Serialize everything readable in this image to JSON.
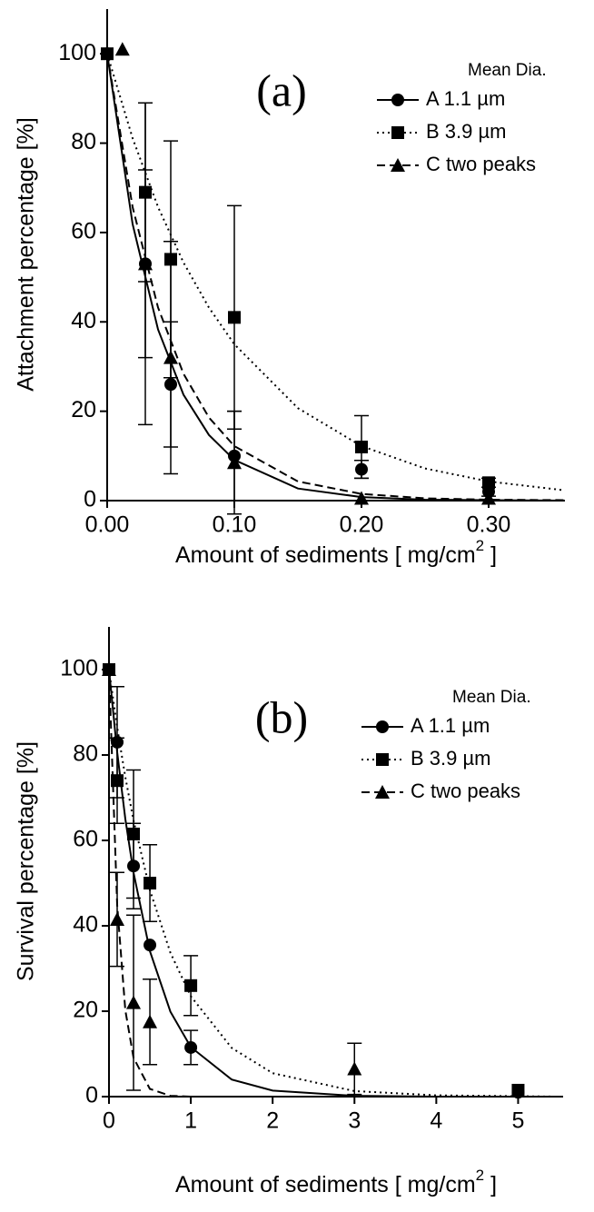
{
  "chart_data": [
    {
      "type": "scatter",
      "panel_label": "(a)",
      "ylabel": "Attachment percentage [%]",
      "xlabel": [
        "Amount of sediments [ mg/cm",
        "2",
        " ]"
      ],
      "legend_title": "Mean Dia.",
      "xlim": [
        0,
        0.36
      ],
      "ylim": [
        0,
        110
      ],
      "xticks": [
        {
          "value": 0,
          "label": "0.00"
        },
        {
          "value": 0.1,
          "label": "0.10"
        },
        {
          "value": 0.2,
          "label": "0.20"
        },
        {
          "value": 0.3,
          "label": "0.30"
        }
      ],
      "yticks": [
        0,
        20,
        40,
        60,
        80,
        100
      ],
      "grid": false,
      "series": [
        {
          "name": "A  1.1 µm",
          "color": "#000000",
          "marker": "circle",
          "line": "solid",
          "x": [
            0,
            0.03,
            0.05,
            0.1,
            0.2,
            0.3
          ],
          "values": [
            100,
            53,
            26,
            10,
            7,
            2
          ],
          "errors": [
            null,
            36,
            14,
            10,
            2,
            1
          ],
          "fit": {
            "x": [
              0,
              0.02,
              0.04,
              0.06,
              0.08,
              0.1,
              0.15,
              0.2,
              0.25,
              0.3,
              0.36
            ],
            "values": [
              100,
              61.9,
              38.3,
              23.7,
              14.7,
              9.1,
              2.7,
              0.8,
              0.2,
              0.1,
              0
            ]
          }
        },
        {
          "name": "B  3.9 µm",
          "color": "#000000",
          "marker": "square",
          "line": "dotted",
          "x": [
            0,
            0.03,
            0.05,
            0.1,
            0.2,
            0.3
          ],
          "values": [
            100,
            69,
            54,
            41,
            12,
            4
          ],
          "errors": [
            null,
            20,
            26.5,
            25,
            7,
            1
          ],
          "fit": {
            "x": [
              0,
              0.02,
              0.04,
              0.06,
              0.08,
              0.1,
              0.15,
              0.2,
              0.25,
              0.3,
              0.36
            ],
            "values": [
              100,
              81.1,
              65.7,
              53.3,
              43.2,
              35,
              20.7,
              12.2,
              7.2,
              4.3,
              2.3
            ]
          }
        },
        {
          "name": "C  two peaks",
          "color": "#000000",
          "marker": "triangle",
          "line": "dashed",
          "x": [
            0.012,
            0.03,
            0.05,
            0.1,
            0.2,
            0.3
          ],
          "values": [
            101,
            53,
            32,
            8.5,
            0.5,
            0.5
          ],
          "errors": [
            null,
            21,
            26,
            11.5,
            null,
            null
          ],
          "fit": {
            "x": [
              0,
              0.02,
              0.04,
              0.06,
              0.08,
              0.1,
              0.15,
              0.2,
              0.25,
              0.3,
              0.36
            ],
            "values": [
              100,
              65.7,
              43.2,
              28.4,
              18.6,
              12.2,
              4.3,
              1.5,
              0.5,
              0.2,
              0.1
            ]
          }
        }
      ]
    },
    {
      "type": "scatter",
      "panel_label": "(b)",
      "ylabel": "Survival percentage [%]",
      "xlabel": [
        "Amount of sediments [ mg/cm",
        "2",
        " ]"
      ],
      "legend_title": "Mean Dia.",
      "xlim": [
        0,
        5.55
      ],
      "ylim": [
        0,
        110
      ],
      "xticks": [
        0,
        1,
        2,
        3,
        4,
        5
      ],
      "yticks": [
        0,
        20,
        40,
        60,
        80,
        100
      ],
      "grid": false,
      "series": [
        {
          "name": "A  1.1 µm",
          "color": "#000000",
          "marker": "circle",
          "line": "solid",
          "x": [
            0,
            0.1,
            0.3,
            0.5,
            1,
            5
          ],
          "values": [
            100,
            83,
            54,
            35.5,
            11.5,
            1
          ],
          "errors": [
            null,
            13,
            10,
            null,
            4,
            null
          ],
          "fit": {
            "x": [
              0,
              0.1,
              0.2,
              0.3,
              0.5,
              0.75,
              1,
              1.5,
              2,
              3,
              4,
              5.5
            ],
            "values": [
              100,
              80.7,
              65,
              52.5,
              34.1,
              19.9,
              11.6,
              4,
              1.4,
              0.2,
              0,
              0
            ]
          }
        },
        {
          "name": "B  3.9 µm",
          "color": "#000000",
          "marker": "square",
          "line": "dotted",
          "x": [
            0,
            0.1,
            0.3,
            0.5,
            1,
            5
          ],
          "values": [
            100,
            74,
            61.5,
            50,
            26,
            1.5
          ],
          "errors": [
            null,
            10,
            15,
            9,
            7,
            null
          ],
          "fit": {
            "x": [
              0,
              0.1,
              0.2,
              0.3,
              0.5,
              0.75,
              1,
              1.5,
              2,
              3,
              4,
              5.5
            ],
            "values": [
              100,
              86.5,
              74.8,
              64.7,
              48.4,
              33.7,
              23.5,
              11.4,
              5.5,
              1.3,
              0.3,
              0
            ]
          }
        },
        {
          "name": "C  two peaks",
          "color": "#000000",
          "marker": "triangle",
          "line": "dashed",
          "x": [
            0,
            0.1,
            0.3,
            0.5,
            3
          ],
          "values": [
            100,
            41.5,
            22,
            17.5,
            6.5
          ],
          "errors": [
            null,
            11,
            20.5,
            10,
            6
          ],
          "fit": {
            "x": [
              0,
              0.1,
              0.2,
              0.3,
              0.5,
              0.75,
              1,
              1.5,
              2,
              3,
              4,
              5.5
            ],
            "values": [
              100,
              44.9,
              20.2,
              9.1,
              1.8,
              0.2,
              0,
              0,
              0,
              0,
              0,
              0
            ]
          }
        }
      ]
    }
  ]
}
